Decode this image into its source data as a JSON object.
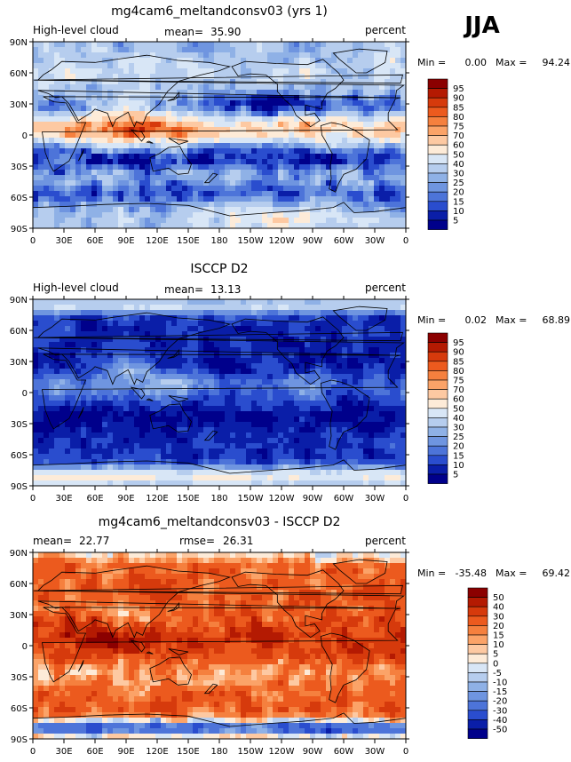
{
  "season": "JJA",
  "panels": [
    {
      "id": "model",
      "title": "mg4cam6_meltandconsv03 (yrs 1)",
      "left_label": "High-level cloud",
      "stat1_label": "mean=",
      "stat1_value": "35.90",
      "stat2_label": "",
      "stat2_value": "",
      "units": "percent",
      "min_label": "Min =",
      "min_value": "0.00",
      "max_label": "Max =",
      "max_value": "94.24",
      "colorbar_levels": [
        "95",
        "90",
        "85",
        "80",
        "75",
        "70",
        "60",
        "50",
        "40",
        "30",
        "25",
        "20",
        "15",
        "10",
        "5"
      ],
      "colorbar_colors": [
        "#8b0000",
        "#b41a02",
        "#d63a0c",
        "#ec5a1e",
        "#f5803e",
        "#fba368",
        "#fdc9a2",
        "#fdebd8",
        "#d8e6f6",
        "#b6cdee",
        "#8fb1e6",
        "#6f95e0",
        "#4d74d9",
        "#2a4dce",
        "#0a1ea8",
        "#00008b"
      ],
      "field_type": "high_cloud_model"
    },
    {
      "id": "obs",
      "title": "ISCCP D2",
      "left_label": "High-level cloud",
      "stat1_label": "mean=",
      "stat1_value": "13.13",
      "stat2_label": "",
      "stat2_value": "",
      "units": "percent",
      "min_label": "Min =",
      "min_value": "0.02",
      "max_label": "Max =",
      "max_value": "68.89",
      "colorbar_levels": [
        "95",
        "90",
        "85",
        "80",
        "75",
        "70",
        "60",
        "50",
        "40",
        "30",
        "25",
        "20",
        "15",
        "10",
        "5"
      ],
      "colorbar_colors": [
        "#8b0000",
        "#b41a02",
        "#d63a0c",
        "#ec5a1e",
        "#f5803e",
        "#fba368",
        "#fdc9a2",
        "#fdebd8",
        "#d8e6f6",
        "#b6cdee",
        "#8fb1e6",
        "#6f95e0",
        "#4d74d9",
        "#2a4dce",
        "#0a1ea8",
        "#00008b"
      ],
      "field_type": "high_cloud_obs"
    },
    {
      "id": "diff",
      "title": "mg4cam6_meltandconsv03 - ISCCP D2",
      "left_label": "",
      "stat1_label": "mean=",
      "stat1_value": "22.77",
      "stat2_label": "rmse=",
      "stat2_value": "26.31",
      "units": "percent",
      "min_label": "Min =",
      "min_value": "-35.48",
      "max_label": "Max =",
      "max_value": "69.42",
      "colorbar_levels": [
        "50",
        "40",
        "30",
        "20",
        "15",
        "10",
        "5",
        "0",
        "-5",
        "-10",
        "-15",
        "-20",
        "-30",
        "-40",
        "-50"
      ],
      "colorbar_colors": [
        "#8b0000",
        "#b41a02",
        "#d63a0c",
        "#ec5a1e",
        "#f5803e",
        "#fba368",
        "#fdc9a2",
        "#fdebd8",
        "#d8e6f6",
        "#b6cdee",
        "#8fb1e6",
        "#6f95e0",
        "#4d74d9",
        "#2a4dce",
        "#0a1ea8",
        "#00008b"
      ],
      "field_type": "difference"
    }
  ],
  "lat_labels": [
    "90N",
    "60N",
    "30N",
    "0",
    "30S",
    "60S",
    "90S"
  ],
  "lon_labels": [
    "0",
    "30E",
    "60E",
    "90E",
    "120E",
    "150E",
    "180",
    "150W",
    "120W",
    "90W",
    "60W",
    "30W",
    "0"
  ]
}
